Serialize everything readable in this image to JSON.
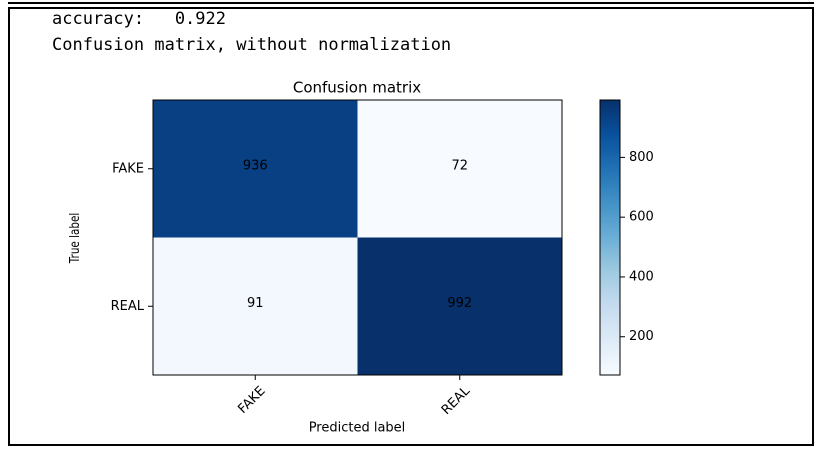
{
  "output_lines": [
    "accuracy:   0.922",
    "Confusion matrix, without normalization"
  ],
  "chart_data": {
    "type": "heatmap",
    "title": "Confusion matrix",
    "xlabel": "Predicted label",
    "ylabel": "True label",
    "x_categories": [
      "FAKE",
      "REAL"
    ],
    "y_categories": [
      "FAKE",
      "REAL"
    ],
    "values": [
      [
        936,
        72
      ],
      [
        91,
        992
      ]
    ],
    "colormap": "Blues",
    "clim": [
      72,
      992
    ],
    "colorbar_ticks": [
      200,
      400,
      600,
      800
    ]
  }
}
